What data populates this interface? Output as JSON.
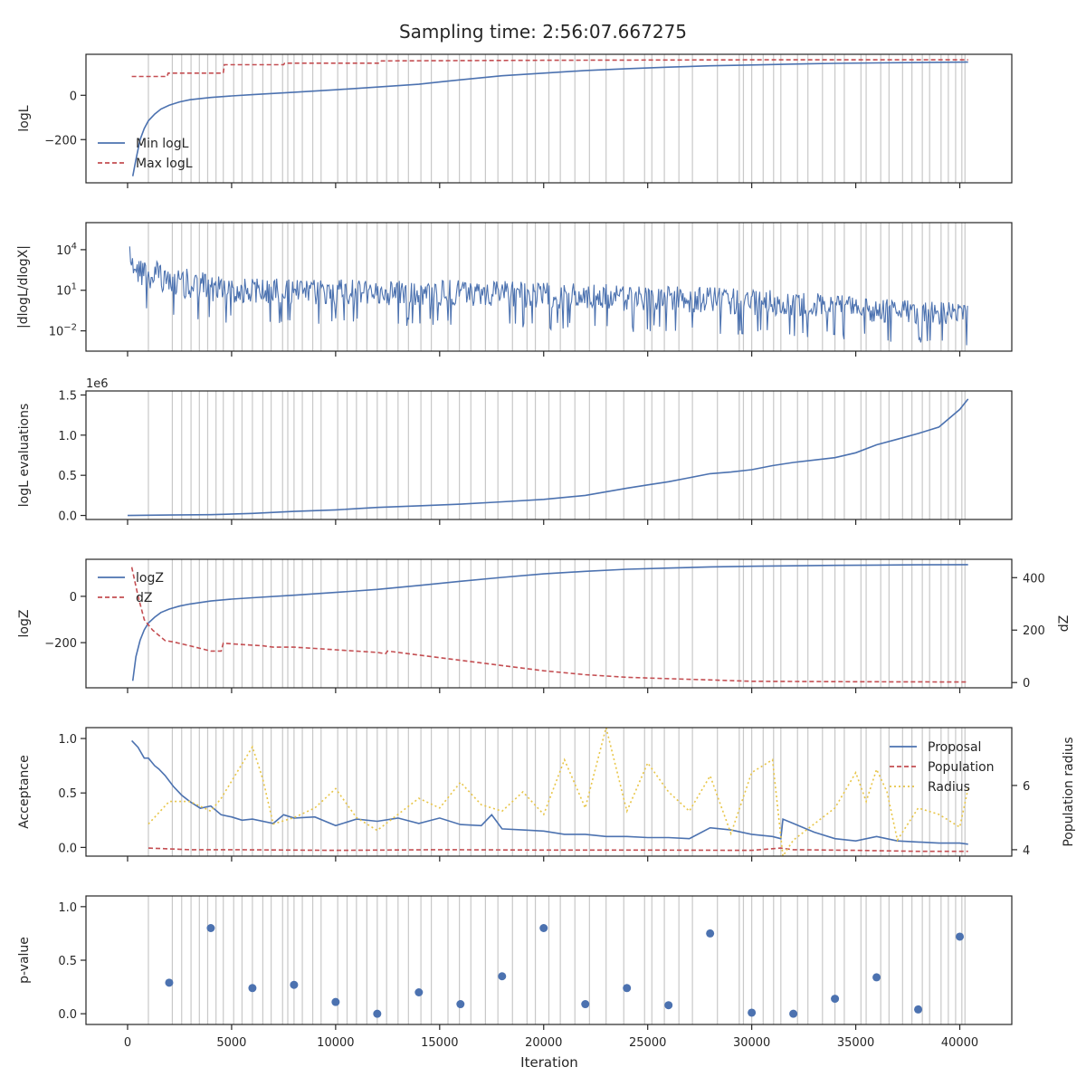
{
  "title": "Sampling time: 2:56:07.667275",
  "xlabel": "Iteration",
  "x_ticks": [
    0,
    5000,
    10000,
    15000,
    20000,
    25000,
    30000,
    35000,
    40000
  ],
  "xlim": [
    -2000,
    42500
  ],
  "colors": {
    "blue": "#4c72b0",
    "red": "#c44e52",
    "yellow": "#e8c547",
    "vline": "#c8c8c8"
  },
  "vlines": [
    1000,
    2150,
    2600,
    3050,
    3450,
    3850,
    4250,
    4600,
    5100,
    5500,
    6000,
    6500,
    6900,
    7450,
    7700,
    8000,
    8400,
    8900,
    9300,
    10100,
    10550,
    11000,
    11500,
    12000,
    12450,
    13000,
    13500,
    14100,
    14600,
    15400,
    15950,
    16500,
    17200,
    17800,
    18500,
    19200,
    19600,
    20250,
    20800,
    21500,
    22200,
    23000,
    23850,
    24850,
    25200,
    25800,
    26500,
    27150,
    28350,
    29400,
    29600,
    30000,
    30550,
    31050,
    31400,
    32200,
    32700,
    33400,
    34000,
    34450,
    35250,
    35500,
    36200,
    36600,
    37250,
    37700,
    38200,
    38550,
    39100,
    39450,
    39800,
    40100,
    40250
  ],
  "chart_data": [
    {
      "type": "line",
      "ylabel": "logL",
      "ylim": [
        -395,
        185
      ],
      "yticks": [
        0,
        -200
      ],
      "ytick_labels": [
        "0",
        "−200"
      ],
      "legend_position": "lower-left",
      "series": [
        {
          "name": "Min logL",
          "color": "#4c72b0",
          "style": "solid",
          "x": [
            250,
            400,
            600,
            800,
            1000,
            1300,
            1600,
            2000,
            2500,
            3000,
            4000,
            5000,
            6000,
            8000,
            10000,
            12000,
            14000,
            15000,
            16000,
            18000,
            20000,
            22000,
            24000,
            26000,
            28000,
            30000,
            32000,
            34000,
            36000,
            38000,
            40400
          ],
          "y": [
            -365,
            -290,
            -200,
            -150,
            -115,
            -85,
            -62,
            -45,
            -30,
            -20,
            -10,
            -3,
            3,
            14,
            25,
            37,
            50,
            60,
            70,
            88,
            100,
            112,
            120,
            127,
            133,
            137,
            141,
            144,
            146,
            148,
            150
          ]
        },
        {
          "name": "Max logL",
          "color": "#c44e52",
          "style": "dashed",
          "x": [
            200,
            1900,
            1950,
            4600,
            4650,
            7500,
            7550,
            12100,
            12200,
            20000,
            30000,
            40400
          ],
          "y": [
            85,
            85,
            100,
            100,
            138,
            138,
            145,
            145,
            155,
            158,
            160,
            160
          ]
        }
      ]
    },
    {
      "type": "line",
      "ylabel": "|dlogL/dlogX|",
      "yscale": "log",
      "ylim_log10": [
        -3.5,
        6.0
      ],
      "yticks_log10": [
        4,
        1,
        -2
      ],
      "ytick_labels": [
        "10",
        "10",
        "10"
      ],
      "ytick_exponents": [
        "4",
        "1",
        "−2"
      ],
      "envelope": {
        "x": [
          100,
          200,
          400,
          800,
          1500,
          2500,
          4000,
          6000,
          9000,
          12000,
          15000,
          18000,
          21000,
          24000,
          27000,
          30000,
          33000,
          36000,
          38000,
          40400
        ],
        "high": [
          5.5,
          4.2,
          3.8,
          3.4,
          3.1,
          2.7,
          2.2,
          1.9,
          1.8,
          1.8,
          1.8,
          1.7,
          1.55,
          1.4,
          1.3,
          1.1,
          0.8,
          0.4,
          0.2,
          0.1
        ],
        "low": [
          2.7,
          1.6,
          0.5,
          0.0,
          -0.3,
          -0.6,
          -0.8,
          -0.9,
          -1.0,
          -1.0,
          -1.1,
          -1.2,
          -1.35,
          -1.5,
          -1.6,
          -1.8,
          -2.0,
          -2.2,
          -2.35,
          -2.5
        ]
      }
    },
    {
      "type": "line",
      "ylabel": "logL evaluations",
      "offset_label": "1e6",
      "ylim": [
        -0.05,
        1.55
      ],
      "yticks": [
        0.0,
        0.5,
        1.0,
        1.5
      ],
      "ytick_labels": [
        "0.0",
        "0.5",
        "1.0",
        "1.5"
      ],
      "series": [
        {
          "name": "",
          "color": "#4c72b0",
          "style": "solid",
          "x": [
            0,
            2000,
            4000,
            6000,
            8000,
            10000,
            12000,
            14000,
            16000,
            18000,
            20000,
            22000,
            24000,
            25000,
            26000,
            27000,
            28000,
            29000,
            30000,
            31000,
            32000,
            34000,
            35000,
            36000,
            37000,
            38000,
            39000,
            40000,
            40400
          ],
          "y": [
            0,
            0.005,
            0.01,
            0.025,
            0.05,
            0.07,
            0.1,
            0.12,
            0.14,
            0.17,
            0.2,
            0.25,
            0.34,
            0.38,
            0.42,
            0.47,
            0.52,
            0.54,
            0.57,
            0.62,
            0.66,
            0.72,
            0.78,
            0.88,
            0.95,
            1.02,
            1.1,
            1.32,
            1.45
          ]
        }
      ]
    },
    {
      "type": "line",
      "ylabel": "logZ",
      "ylim": [
        -395,
        160
      ],
      "yticks": [
        0,
        -200
      ],
      "ytick_labels": [
        "0",
        "−200"
      ],
      "ylabel_right": "dZ",
      "ylim_right": [
        -20,
        470
      ],
      "yticks_right": [
        0,
        200,
        400
      ],
      "ytick_labels_right": [
        "0",
        "200",
        "400"
      ],
      "legend_position": "upper-left",
      "series": [
        {
          "name": "logZ",
          "color": "#4c72b0",
          "style": "solid",
          "axis": "left",
          "x": [
            250,
            400,
            600,
            800,
            1000,
            1300,
            1600,
            2000,
            2500,
            3000,
            4000,
            5000,
            6000,
            8000,
            10000,
            12000,
            14000,
            16000,
            18000,
            20000,
            22000,
            24000,
            26000,
            28000,
            30000,
            32000,
            34000,
            36000,
            38000,
            40400
          ],
          "y": [
            -365,
            -260,
            -190,
            -145,
            -115,
            -90,
            -70,
            -55,
            -42,
            -33,
            -20,
            -12,
            -6,
            5,
            17,
            30,
            47,
            65,
            82,
            97,
            108,
            117,
            122,
            127,
            130,
            132,
            134,
            135,
            136,
            137
          ]
        },
        {
          "name": "dZ",
          "color": "#c44e52",
          "style": "dashed",
          "axis": "right",
          "x": [
            200,
            500,
            800,
            1200,
            1800,
            2200,
            3000,
            4000,
            4500,
            4600,
            5500,
            6500,
            7000,
            8000,
            9000,
            10000,
            12000,
            12400,
            12500,
            14000,
            16000,
            18000,
            20000,
            22000,
            24000,
            26000,
            28000,
            30000,
            35000,
            40400
          ],
          "y": [
            440,
            330,
            240,
            200,
            160,
            155,
            140,
            120,
            120,
            150,
            145,
            140,
            135,
            135,
            130,
            125,
            115,
            110,
            120,
            105,
            85,
            65,
            45,
            30,
            20,
            15,
            10,
            5,
            3,
            2
          ]
        }
      ]
    },
    {
      "type": "line",
      "ylabel": "Acceptance",
      "ylim": [
        -0.08,
        1.1
      ],
      "yticks": [
        0.0,
        0.5,
        1.0
      ],
      "ytick_labels": [
        "0.0",
        "0.5",
        "1.0"
      ],
      "ylabel_right": "Population radius",
      "ylim_right": [
        3.8,
        7.8
      ],
      "yticks_right": [
        4,
        6
      ],
      "ytick_labels_right": [
        "4",
        "6"
      ],
      "legend_position": "upper-right",
      "series": [
        {
          "name": "Proposal",
          "color": "#4c72b0",
          "style": "solid",
          "axis": "left",
          "x": [
            200,
            500,
            800,
            1000,
            1300,
            1500,
            1800,
            2200,
            2600,
            3000,
            3500,
            4000,
            4500,
            5000,
            5500,
            6000,
            7000,
            7500,
            8000,
            9000,
            10000,
            11000,
            12000,
            13000,
            14000,
            15000,
            16000,
            17000,
            17500,
            18000,
            19000,
            20000,
            21000,
            22000,
            23000,
            24000,
            25000,
            26000,
            27000,
            28000,
            29000,
            30000,
            31000,
            31400,
            31500,
            32000,
            33000,
            34000,
            35000,
            36000,
            37000,
            38000,
            39000,
            40000,
            40400
          ],
          "y": [
            0.98,
            0.92,
            0.82,
            0.82,
            0.75,
            0.72,
            0.66,
            0.56,
            0.48,
            0.42,
            0.36,
            0.38,
            0.3,
            0.28,
            0.25,
            0.26,
            0.22,
            0.3,
            0.27,
            0.28,
            0.2,
            0.26,
            0.24,
            0.27,
            0.22,
            0.27,
            0.21,
            0.2,
            0.3,
            0.17,
            0.16,
            0.15,
            0.12,
            0.12,
            0.1,
            0.1,
            0.09,
            0.09,
            0.08,
            0.18,
            0.16,
            0.12,
            0.1,
            0.08,
            0.26,
            0.22,
            0.14,
            0.08,
            0.06,
            0.1,
            0.06,
            0.05,
            0.04,
            0.04,
            0.03
          ]
        },
        {
          "name": "Population",
          "color": "#c44e52",
          "style": "dashed",
          "axis": "right",
          "x": [
            1000,
            3000,
            5000,
            10000,
            15000,
            20000,
            25000,
            30000,
            31400,
            32000,
            35000,
            38000,
            40400
          ],
          "y": [
            4.05,
            4.0,
            4.0,
            3.98,
            4.0,
            3.99,
            3.99,
            3.98,
            4.05,
            4.0,
            3.98,
            3.95,
            3.95
          ]
        },
        {
          "name": "Radius",
          "color": "#e8c547",
          "style": "dotted",
          "axis": "right",
          "x": [
            1000,
            2000,
            3000,
            4000,
            4500,
            6000,
            6500,
            7000,
            8000,
            9000,
            10000,
            11000,
            12000,
            14000,
            15000,
            16000,
            17000,
            18000,
            19000,
            20000,
            21000,
            22000,
            23000,
            24000,
            25000,
            26000,
            27000,
            28000,
            29000,
            30000,
            31000,
            31500,
            32000,
            33000,
            34000,
            35000,
            35500,
            36000,
            36500,
            37000,
            38000,
            39000,
            40000,
            40400
          ],
          "y": [
            4.8,
            5.5,
            5.5,
            5.2,
            5.6,
            7.2,
            6.2,
            4.8,
            5.0,
            5.3,
            5.9,
            5.0,
            4.6,
            5.6,
            5.3,
            6.1,
            5.4,
            5.2,
            5.8,
            5.1,
            6.8,
            5.3,
            7.8,
            5.2,
            6.7,
            5.8,
            5.2,
            6.3,
            4.5,
            6.4,
            6.8,
            3.8,
            4.3,
            4.8,
            5.3,
            6.4,
            5.5,
            6.5,
            5.8,
            4.3,
            5.3,
            5.1,
            4.7,
            5.9
          ]
        }
      ]
    },
    {
      "type": "scatter",
      "ylabel": "p-value",
      "ylim": [
        -0.1,
        1.1
      ],
      "yticks": [
        0.0,
        0.5,
        1.0
      ],
      "ytick_labels": [
        "0.0",
        "0.5",
        "1.0"
      ],
      "x": [
        2000,
        4000,
        6000,
        8000,
        10000,
        12000,
        14000,
        16000,
        18000,
        20000,
        22000,
        24000,
        26000,
        28000,
        30000,
        32000,
        34000,
        36000,
        38000,
        40000
      ],
      "y": [
        0.29,
        0.8,
        0.24,
        0.27,
        0.11,
        0.0,
        0.2,
        0.09,
        0.35,
        0.8,
        0.09,
        0.24,
        0.08,
        0.75,
        0.01,
        0.0,
        0.14,
        0.34,
        0.04,
        0.72
      ]
    }
  ],
  "legend_labels": {
    "p1": [
      "Min logL",
      "Max logL"
    ],
    "p4": [
      "logZ",
      "dZ"
    ],
    "p5": [
      "Proposal",
      "Population",
      "Radius"
    ]
  }
}
